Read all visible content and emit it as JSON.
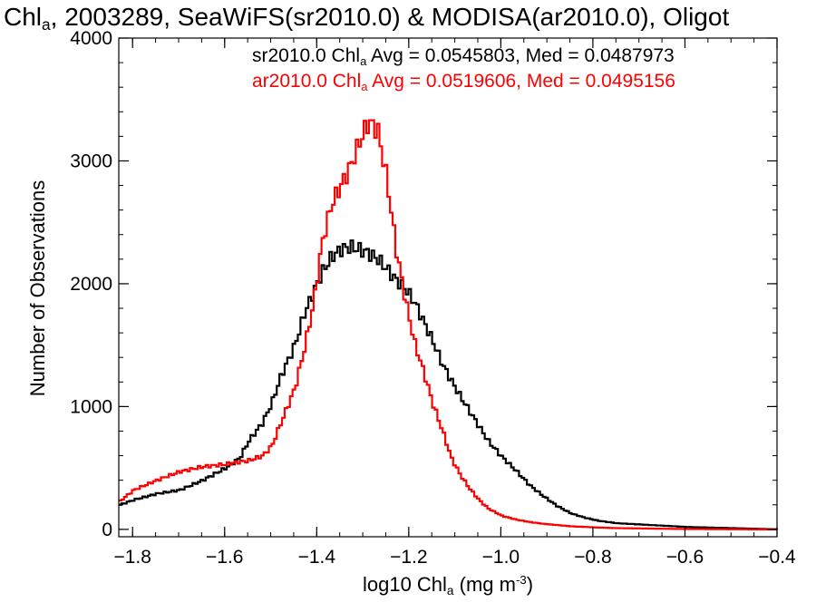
{
  "chart_data": {
    "type": "line",
    "title": {
      "pre": "Chl",
      "sub": "a",
      "post": ", 2003289, SeaWiFS(sr2010.0) & MODISA(ar2010.0), Oligot"
    },
    "xlabel": {
      "pre": "log10 Chl",
      "sub": "a",
      "mid": " (mg m",
      "sup": "-3",
      "post": ")"
    },
    "ylabel": "Number of Observations",
    "xlim": [
      -1.83,
      -0.4
    ],
    "ylim": [
      -60,
      4000
    ],
    "x_ticks": [
      -1.8,
      -1.6,
      -1.4,
      -1.2,
      -1.0,
      -0.8,
      -0.6,
      -0.4
    ],
    "x_tick_labels": [
      "−1.8",
      "−1.6",
      "−1.4",
      "−1.2",
      "−1.0",
      "−0.8",
      "−0.6",
      "−0.4"
    ],
    "y_ticks": [
      0,
      1000,
      2000,
      3000,
      4000
    ],
    "y_tick_labels": [
      "0",
      "1000",
      "2000",
      "3000",
      "4000"
    ],
    "legend_placement": "top-right",
    "series": [
      {
        "name": "sr2010.0",
        "color": "#000000",
        "stats_text": {
          "pre": "sr2010.0 Chl",
          "sub": "a",
          "post": " Avg = 0.0545803, Med = 0.0487973"
        },
        "x": [
          -1.83,
          -1.8,
          -1.75,
          -1.7,
          -1.65,
          -1.6,
          -1.57,
          -1.55,
          -1.52,
          -1.5,
          -1.48,
          -1.45,
          -1.43,
          -1.41,
          -1.39,
          -1.37,
          -1.35,
          -1.33,
          -1.31,
          -1.29,
          -1.27,
          -1.25,
          -1.23,
          -1.21,
          -1.19,
          -1.17,
          -1.15,
          -1.13,
          -1.11,
          -1.09,
          -1.07,
          -1.05,
          -1.03,
          -1.0,
          -0.97,
          -0.94,
          -0.91,
          -0.88,
          -0.85,
          -0.82,
          -0.79,
          -0.75,
          -0.7,
          -0.65,
          -0.6,
          -0.55,
          -0.5,
          -0.45,
          -0.4
        ],
        "y": [
          200,
          240,
          290,
          320,
          400,
          500,
          580,
          720,
          870,
          1030,
          1250,
          1500,
          1750,
          1930,
          2100,
          2220,
          2280,
          2300,
          2280,
          2250,
          2200,
          2120,
          2030,
          1960,
          1850,
          1690,
          1530,
          1350,
          1210,
          1080,
          960,
          840,
          720,
          590,
          480,
          360,
          270,
          190,
          130,
          95,
          70,
          50,
          40,
          30,
          20,
          15,
          10,
          5,
          0
        ]
      },
      {
        "name": "ar2010.0",
        "color": "#ff0000",
        "stats_text": {
          "pre": "ar2010.0 Chl",
          "sub": "a",
          "post": " Avg = 0.0519606, Med = 0.0495156"
        },
        "x": [
          -1.83,
          -1.8,
          -1.75,
          -1.7,
          -1.65,
          -1.6,
          -1.57,
          -1.55,
          -1.52,
          -1.5,
          -1.48,
          -1.45,
          -1.43,
          -1.41,
          -1.39,
          -1.37,
          -1.35,
          -1.33,
          -1.31,
          -1.29,
          -1.27,
          -1.25,
          -1.23,
          -1.21,
          -1.19,
          -1.17,
          -1.15,
          -1.13,
          -1.11,
          -1.09,
          -1.07,
          -1.05,
          -1.03,
          -1.0,
          -0.97,
          -0.94,
          -0.91,
          -0.88,
          -0.85,
          -0.82,
          -0.79,
          -0.75,
          -0.7,
          -0.65,
          -0.6,
          -0.55,
          -0.5,
          -0.45,
          -0.4
        ],
        "y": [
          230,
          320,
          400,
          470,
          510,
          530,
          550,
          560,
          600,
          680,
          870,
          1150,
          1460,
          1830,
          2350,
          2650,
          2800,
          2950,
          3150,
          3320,
          3250,
          2850,
          2280,
          1870,
          1520,
          1280,
          1020,
          810,
          580,
          440,
          330,
          240,
          170,
          110,
          80,
          60,
          45,
          35,
          25,
          20,
          15,
          10,
          8,
          5,
          3,
          2,
          1,
          0,
          0
        ]
      }
    ]
  }
}
